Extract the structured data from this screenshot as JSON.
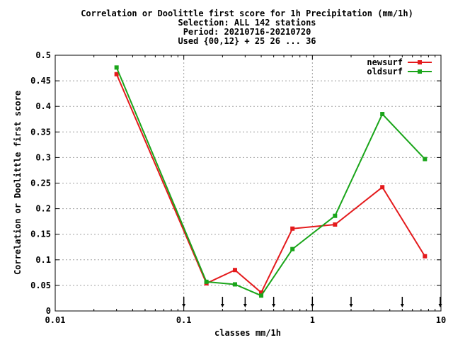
{
  "chart_data": {
    "type": "line",
    "title_lines": [
      "Correlation or Doolittle first score  for 1h Precipitation (mm/1h)",
      "Selection: ALL    142 stations",
      "Period: 20210716-20210720",
      "Used {00,12} + 25 26 ... 36"
    ],
    "xlabel": "classes mm/1h",
    "ylabel": "Correlation or Doolittle first score",
    "x_scale": "log",
    "xlim": [
      0.01,
      10
    ],
    "ylim": [
      0,
      0.5
    ],
    "x_ticks": [
      0.01,
      0.1,
      1,
      10
    ],
    "x_tick_labels": [
      "0.01",
      "0.1",
      "1",
      "10"
    ],
    "y_ticks": [
      0,
      0.05,
      0.1,
      0.15,
      0.2,
      0.25,
      0.3,
      0.35,
      0.4,
      0.45,
      0.5
    ],
    "y_tick_labels": [
      "0",
      "0.05",
      "0.1",
      "0.15",
      "0.2",
      "0.25",
      "0.3",
      "0.35",
      "0.4",
      "0.45",
      "0.5"
    ],
    "grid": true,
    "legend_position": "top-right",
    "class_markers": [
      0.1,
      0.2,
      0.3,
      0.5,
      1,
      2,
      5,
      10
    ],
    "series": [
      {
        "name": "newsurf",
        "color": "#e41a1c",
        "x": [
          0.03,
          0.15,
          0.25,
          0.4,
          0.7,
          1.5,
          3.5,
          7.5
        ],
        "y": [
          0.463,
          0.054,
          0.08,
          0.036,
          0.161,
          0.169,
          0.242,
          0.107
        ]
      },
      {
        "name": "oldsurf",
        "color": "#1aa51a",
        "x": [
          0.03,
          0.15,
          0.25,
          0.4,
          0.7,
          1.5,
          3.5,
          7.5
        ],
        "y": [
          0.476,
          0.057,
          0.052,
          0.03,
          0.121,
          0.186,
          0.385,
          0.297
        ]
      }
    ]
  }
}
